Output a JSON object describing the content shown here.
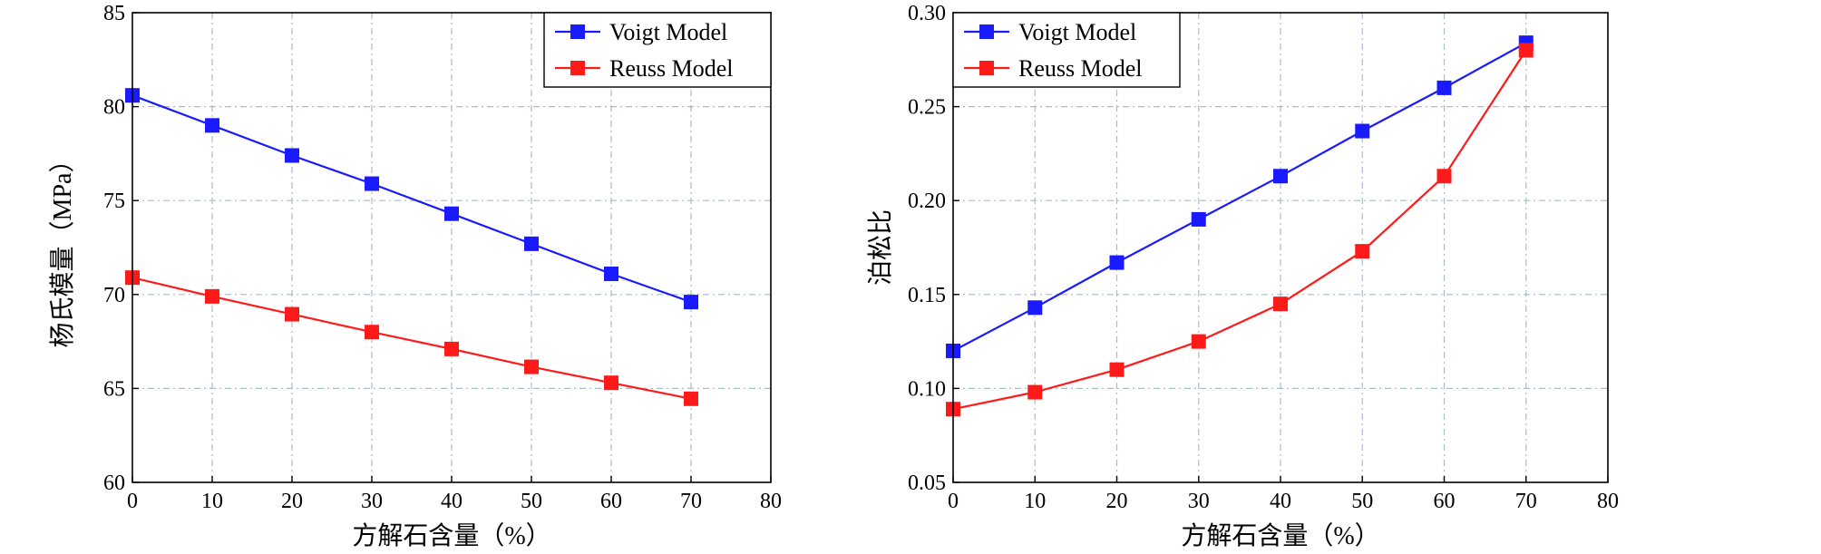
{
  "chart_data": [
    {
      "type": "line",
      "title": "",
      "xlabel": "方解石含量（%）",
      "ylabel": "杨氏模量（MPa）",
      "x": [
        0,
        10,
        20,
        30,
        40,
        50,
        60,
        70
      ],
      "xlim": [
        0,
        80
      ],
      "ylim": [
        60,
        85
      ],
      "xticks": [
        0,
        10,
        20,
        30,
        40,
        50,
        60,
        70,
        80
      ],
      "yticks": [
        60,
        65,
        70,
        75,
        80,
        85
      ],
      "grid": true,
      "legend_position": "top-right",
      "series": [
        {
          "name": "Voigt Model",
          "color": "#1a1aff",
          "values": [
            80.6,
            79.0,
            77.4,
            75.9,
            74.3,
            72.7,
            71.1,
            69.6
          ]
        },
        {
          "name": "Reuss Model",
          "color": "#ff1a1a",
          "values": [
            70.9,
            69.9,
            68.95,
            68.0,
            67.1,
            66.15,
            65.3,
            64.45
          ]
        }
      ]
    },
    {
      "type": "line",
      "title": "",
      "xlabel": "方解石含量（%）",
      "ylabel": "泊松比",
      "x": [
        0,
        10,
        20,
        30,
        40,
        50,
        60,
        70
      ],
      "xlim": [
        0,
        80
      ],
      "ylim": [
        0.05,
        0.3
      ],
      "xticks": [
        0,
        10,
        20,
        30,
        40,
        50,
        60,
        70,
        80
      ],
      "yticks": [
        0.05,
        0.1,
        0.15,
        0.2,
        0.25,
        0.3
      ],
      "yticklabels": [
        "0.05",
        "0.10",
        "0.15",
        "0.20",
        "0.25",
        "0.30"
      ],
      "grid": true,
      "legend_position": "top-left",
      "series": [
        {
          "name": "Voigt Model",
          "color": "#1a1aff",
          "values": [
            0.12,
            0.143,
            0.167,
            0.19,
            0.213,
            0.237,
            0.26,
            0.284
          ]
        },
        {
          "name": "Reuss Model",
          "color": "#ff1a1a",
          "values": [
            0.089,
            0.098,
            0.11,
            0.125,
            0.145,
            0.173,
            0.213,
            0.28
          ]
        }
      ]
    }
  ]
}
